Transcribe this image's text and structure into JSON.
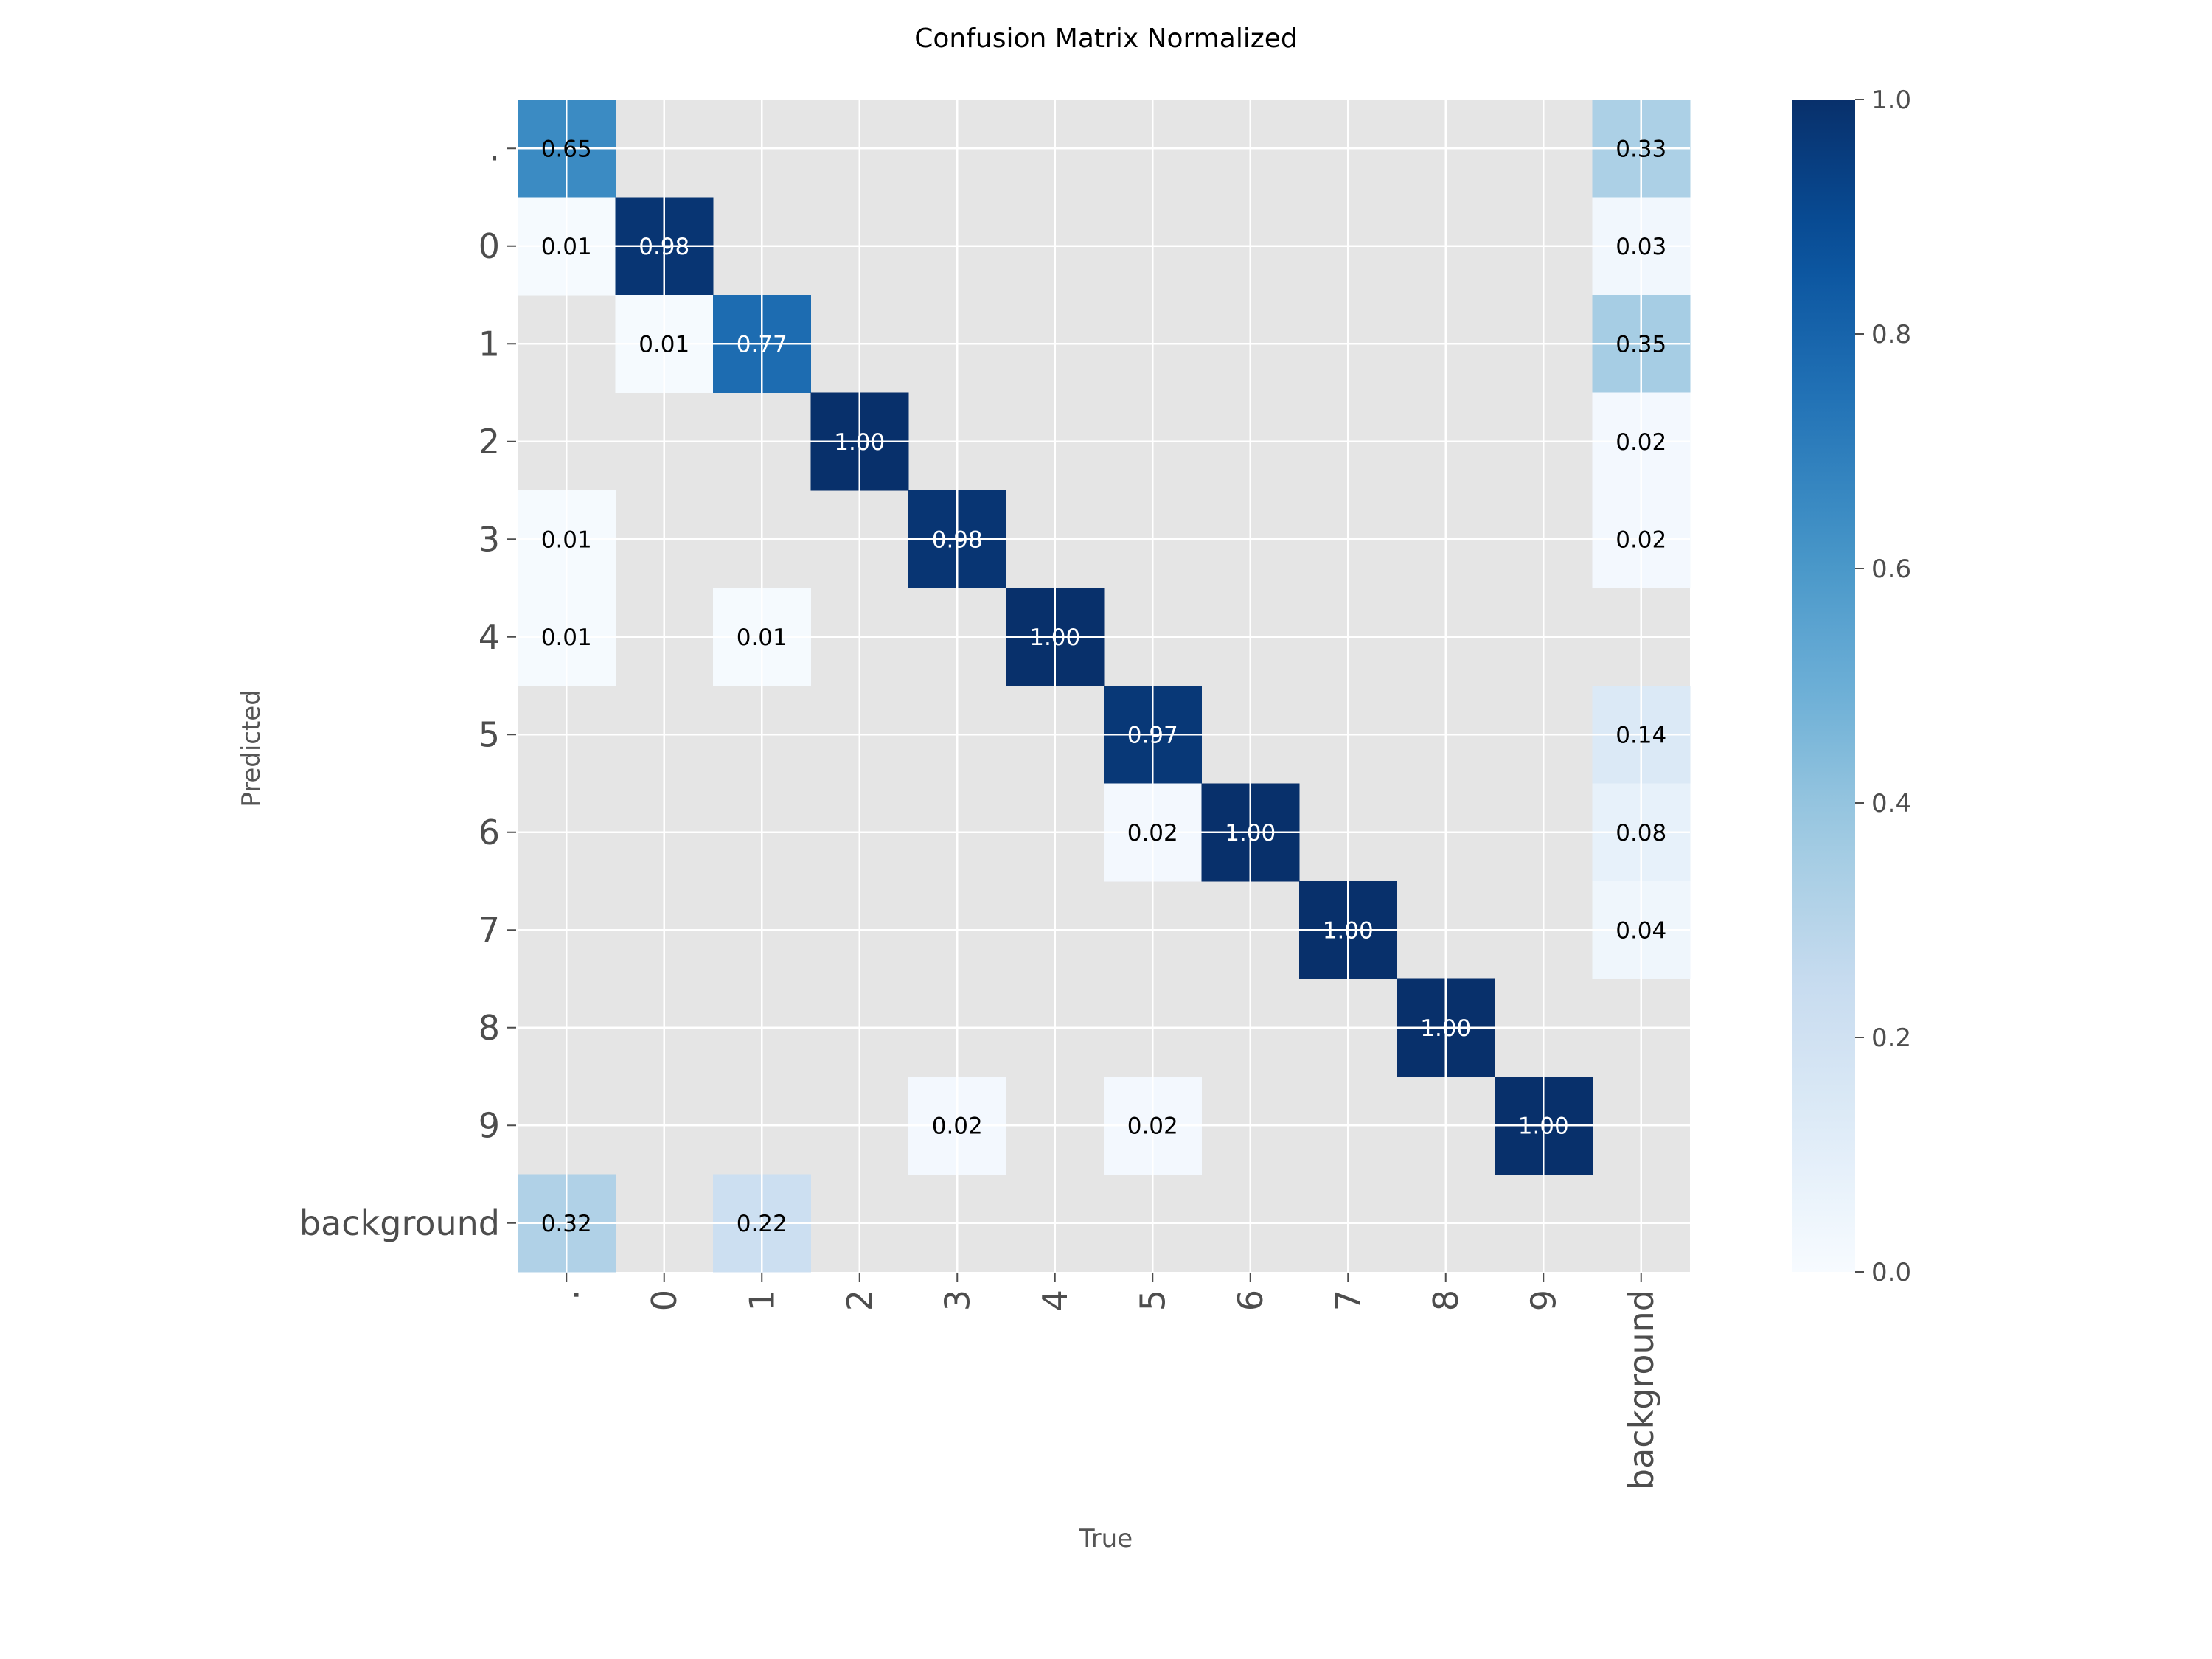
{
  "chart_data": {
    "type": "heatmap",
    "title": "Confusion Matrix Normalized",
    "xlabel": "True",
    "ylabel": "Predicted",
    "x_categories": [
      ".",
      "0",
      "1",
      "2",
      "3",
      "4",
      "5",
      "6",
      "7",
      "8",
      "9",
      "background"
    ],
    "y_categories": [
      ".",
      "0",
      "1",
      "2",
      "3",
      "4",
      "5",
      "6",
      "7",
      "8",
      "9",
      "background"
    ],
    "values": [
      [
        0.65,
        null,
        null,
        null,
        null,
        null,
        null,
        null,
        null,
        null,
        null,
        0.33
      ],
      [
        0.01,
        0.98,
        null,
        null,
        null,
        null,
        null,
        null,
        null,
        null,
        null,
        0.03
      ],
      [
        null,
        0.01,
        0.77,
        null,
        null,
        null,
        null,
        null,
        null,
        null,
        null,
        0.35
      ],
      [
        null,
        null,
        null,
        1.0,
        null,
        null,
        null,
        null,
        null,
        null,
        null,
        0.02
      ],
      [
        0.01,
        null,
        null,
        null,
        0.98,
        null,
        null,
        null,
        null,
        null,
        null,
        0.02
      ],
      [
        0.01,
        null,
        0.01,
        null,
        null,
        1.0,
        null,
        null,
        null,
        null,
        null,
        null
      ],
      [
        null,
        null,
        null,
        null,
        null,
        null,
        0.97,
        null,
        null,
        null,
        null,
        0.14
      ],
      [
        null,
        null,
        null,
        null,
        null,
        null,
        0.02,
        1.0,
        null,
        null,
        null,
        0.08
      ],
      [
        null,
        null,
        null,
        null,
        null,
        null,
        null,
        null,
        1.0,
        null,
        null,
        0.04
      ],
      [
        null,
        null,
        null,
        null,
        null,
        null,
        null,
        null,
        null,
        1.0,
        null,
        null
      ],
      [
        null,
        null,
        null,
        null,
        0.02,
        null,
        0.02,
        null,
        null,
        null,
        1.0,
        null
      ],
      [
        0.32,
        null,
        0.22,
        null,
        null,
        null,
        null,
        null,
        null,
        null,
        null,
        null
      ]
    ],
    "colorbar": {
      "range": [
        0.0,
        1.0
      ],
      "ticks": [
        "0.0",
        "0.2",
        "0.4",
        "0.6",
        "0.8",
        "1.0"
      ],
      "colormap": "Blues"
    },
    "grid": true,
    "background_color": "#e5e5e5"
  }
}
